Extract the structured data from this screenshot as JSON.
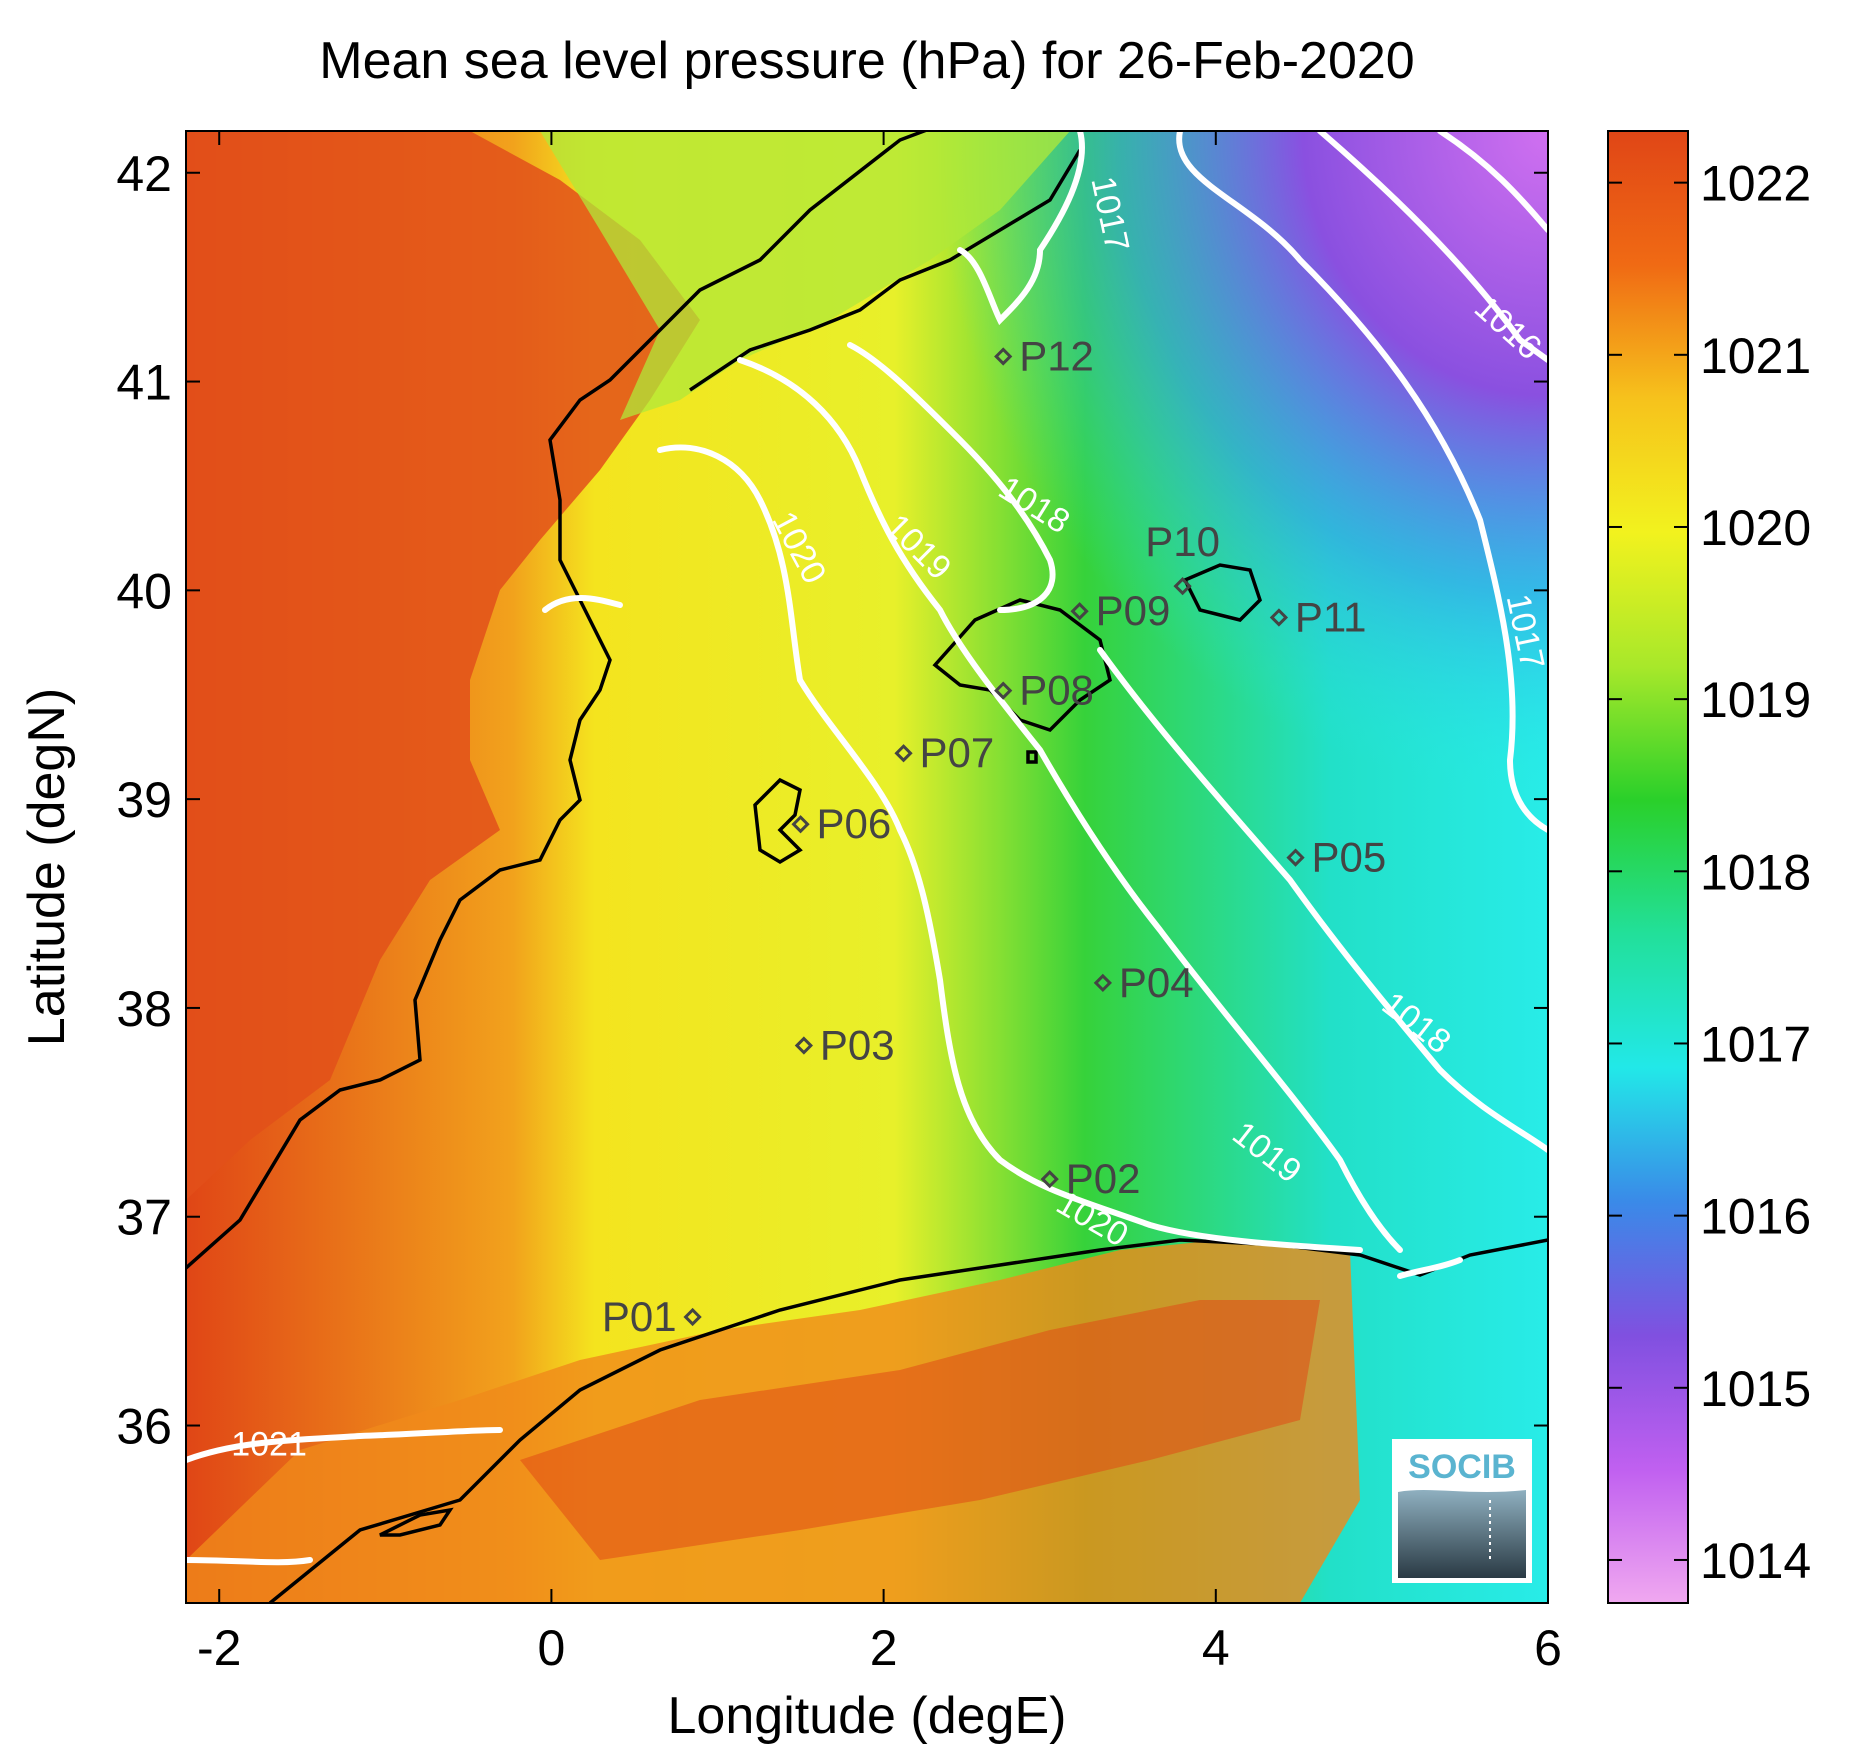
{
  "title": "Mean sea level pressure (hPa) for 26-Feb-2020",
  "axes": {
    "xlabel": "Longitude (degE)",
    "ylabel": "Latitude (degN)",
    "xlim": [
      -2.2,
      6.0
    ],
    "ylim": [
      35.15,
      42.2
    ],
    "xticks": [
      -2,
      0,
      2,
      4,
      6
    ],
    "yticks": [
      36,
      37,
      38,
      39,
      40,
      41,
      42
    ]
  },
  "colorbar": {
    "range": [
      1013.75,
      1022.3
    ],
    "ticks": [
      1014,
      1015,
      1016,
      1017,
      1018,
      1019,
      1020,
      1021,
      1022
    ],
    "colormap": [
      "#f0a8f0",
      "#c060f0",
      "#8050e0",
      "#3a8ae8",
      "#22e8e8",
      "#22e09a",
      "#2ad02a",
      "#a8e82a",
      "#f2f21e",
      "#f6c21c",
      "#f06a14",
      "#e04616"
    ]
  },
  "contour_labels": [
    {
      "text": "1017",
      "lon": 3.35,
      "lat": 41.8,
      "rot": 78
    },
    {
      "text": "1016",
      "lon": 5.75,
      "lat": 41.25,
      "rot": 42
    },
    {
      "text": "1018",
      "lon": 2.9,
      "lat": 40.4,
      "rot": 32
    },
    {
      "text": "1019",
      "lon": 2.2,
      "lat": 40.2,
      "rot": 45
    },
    {
      "text": "1020",
      "lon": 1.48,
      "lat": 40.2,
      "rot": 62
    },
    {
      "text": "1017",
      "lon": 5.85,
      "lat": 39.8,
      "rot": 78
    },
    {
      "text": "1018",
      "lon": 5.2,
      "lat": 37.92,
      "rot": 38
    },
    {
      "text": "1019",
      "lon": 4.3,
      "lat": 37.3,
      "rot": 38
    },
    {
      "text": "1020",
      "lon": 3.25,
      "lat": 36.98,
      "rot": 30
    },
    {
      "text": "1021",
      "lon": -1.7,
      "lat": 35.9,
      "rot": 0
    }
  ],
  "stations": [
    {
      "name": "P01",
      "lon": 0.85,
      "lat": 36.52
    },
    {
      "name": "P02",
      "lon": 3.0,
      "lat": 37.18
    },
    {
      "name": "P03",
      "lon": 1.52,
      "lat": 37.82
    },
    {
      "name": "P04",
      "lon": 3.32,
      "lat": 38.12
    },
    {
      "name": "P05",
      "lon": 4.48,
      "lat": 38.72
    },
    {
      "name": "P06",
      "lon": 1.5,
      "lat": 38.88
    },
    {
      "name": "P07",
      "lon": 2.12,
      "lat": 39.22
    },
    {
      "name": "P08",
      "lon": 2.72,
      "lat": 39.52
    },
    {
      "name": "P09",
      "lon": 3.18,
      "lat": 39.9
    },
    {
      "name": "P10",
      "lon": 3.8,
      "lat": 40.02
    },
    {
      "name": "P11",
      "lon": 4.38,
      "lat": 39.87
    },
    {
      "name": "P12",
      "lon": 2.72,
      "lat": 41.12
    }
  ],
  "logo": {
    "text": "SOCIB"
  }
}
